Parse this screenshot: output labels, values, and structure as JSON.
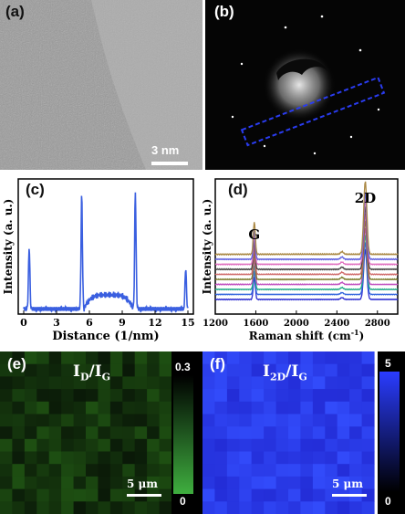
{
  "panel_a": {
    "label": "(a)",
    "scale_text": "3 nm"
  },
  "panel_b": {
    "label": "(b)"
  },
  "panel_c": {
    "label": "(c)",
    "chart_data": {
      "type": "line",
      "xlabel": "Distance (1/nm)",
      "ylabel": "Intensity (a. u.)",
      "xlim": [
        0,
        15
      ],
      "xticks": [
        "0",
        "3",
        "6",
        "9",
        "12",
        "15"
      ],
      "color": "#3a5fe0",
      "peaks": [
        {
          "x": 0.5,
          "y": 0.52
        },
        {
          "x": 5.3,
          "y": 0.93
        },
        {
          "x": 10.2,
          "y": 0.96
        },
        {
          "x": 14.8,
          "y": 0.36
        }
      ],
      "baseline": 0.04,
      "plateau": {
        "x_start": 5.5,
        "x_end": 10.0,
        "y": 0.15
      }
    }
  },
  "panel_d": {
    "label": "(d)",
    "chart_data": {
      "type": "line",
      "xlabel": "Raman shift (cm",
      "xlabel_sup": "-1",
      "xlabel_end": ")",
      "ylabel": "Intensity (a. u.)",
      "xlim": [
        1200,
        3000
      ],
      "xticks": [
        "1200",
        "1600",
        "2000",
        "2400",
        "2800"
      ],
      "annotations": [
        {
          "text": "G",
          "x": 1585
        },
        {
          "text": "2D",
          "x": 2680
        }
      ],
      "series_colors": [
        "#2b2bd0",
        "#3366dd",
        "#22aa88",
        "#c04fc0",
        "#7a7a2a",
        "#d06a6a",
        "#444444",
        "#e070c0",
        "#6060e0",
        "#aa8844"
      ],
      "peaks": {
        "G": 1585,
        "2D": 2680,
        "G_height": 0.38,
        "2D_height": 0.85
      }
    }
  },
  "panel_e": {
    "label": "(e)",
    "ratio_main": "I",
    "ratio_sub1": "D",
    "ratio_mid": "/I",
    "ratio_sub2": "G",
    "cbar_max": "0.3",
    "cbar_min": "0",
    "scale_text": "5 μm"
  },
  "panel_f": {
    "label": "(f)",
    "ratio_main": "I",
    "ratio_sub1": "2D",
    "ratio_mid": "/I",
    "ratio_sub2": "G",
    "cbar_max": "5",
    "cbar_min": "0",
    "scale_text": "5 μm"
  }
}
